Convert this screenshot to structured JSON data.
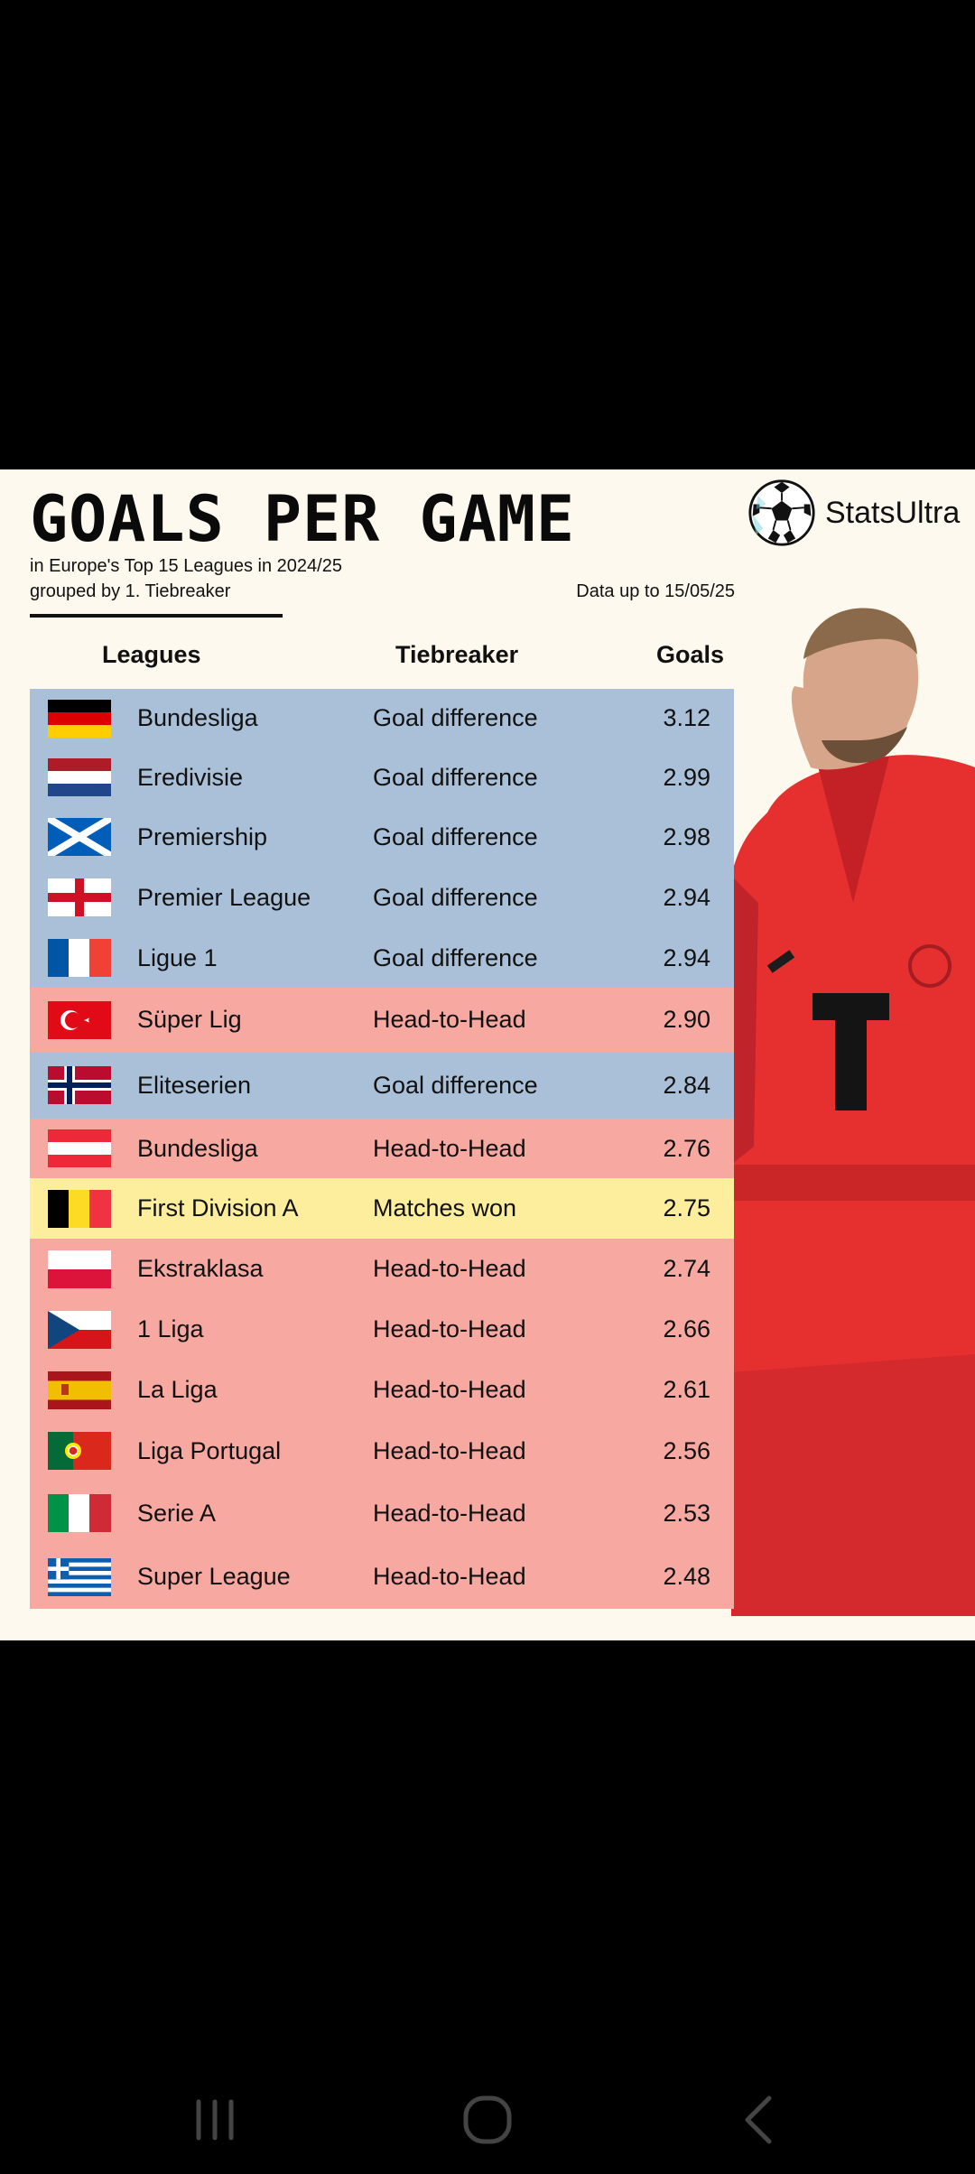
{
  "header": {
    "title": "GOALS PER GAME",
    "subtitle_line1": "in Europe's Top 15 Leagues in 2024/25",
    "subtitle_line2": "grouped by 1. Tiebreaker",
    "data_note": "Data up to 15/05/25"
  },
  "brand": {
    "name": "StatsUltra",
    "logo_icon": "soccer-ball-icon"
  },
  "player_image": "football-player-in-red-kit",
  "table": {
    "columns": {
      "leagues": "Leagues",
      "tiebreaker": "Tiebreaker",
      "goals": "Goals"
    },
    "colors": {
      "Goal difference": "#a9c0d8",
      "Head-to-Head": "#f6a8a1",
      "Matches won": "#fcee9c"
    },
    "rows": [
      {
        "flag": "germany-flag",
        "league": "Bundesliga",
        "tiebreaker": "Goal difference",
        "goals": "3.12"
      },
      {
        "flag": "netherlands-flag",
        "league": "Eredivisie",
        "tiebreaker": "Goal difference",
        "goals": "2.99"
      },
      {
        "flag": "scotland-flag",
        "league": "Premiership",
        "tiebreaker": "Goal difference",
        "goals": "2.98"
      },
      {
        "flag": "england-flag",
        "league": "Premier League",
        "tiebreaker": "Goal difference",
        "goals": "2.94"
      },
      {
        "flag": "france-flag",
        "league": "Ligue 1",
        "tiebreaker": "Goal difference",
        "goals": "2.94"
      },
      {
        "flag": "turkey-flag",
        "league": "Süper Lig",
        "tiebreaker": "Head-to-Head",
        "goals": "2.90"
      },
      {
        "flag": "norway-flag",
        "league": "Eliteserien",
        "tiebreaker": "Goal difference",
        "goals": "2.84"
      },
      {
        "flag": "austria-flag",
        "league": "Bundesliga",
        "tiebreaker": "Head-to-Head",
        "goals": "2.76"
      },
      {
        "flag": "belgium-flag",
        "league": "First Division A",
        "tiebreaker": "Matches won",
        "goals": "2.75"
      },
      {
        "flag": "poland-flag",
        "league": "Ekstraklasa",
        "tiebreaker": "Head-to-Head",
        "goals": "2.74"
      },
      {
        "flag": "czechia-flag",
        "league": "1 Liga",
        "tiebreaker": "Head-to-Head",
        "goals": "2.66"
      },
      {
        "flag": "spain-flag",
        "league": "La Liga",
        "tiebreaker": "Head-to-Head",
        "goals": "2.61"
      },
      {
        "flag": "portugal-flag",
        "league": "Liga Portugal",
        "tiebreaker": "Head-to-Head",
        "goals": "2.56"
      },
      {
        "flag": "italy-flag",
        "league": "Serie A",
        "tiebreaker": "Head-to-Head",
        "goals": "2.53"
      },
      {
        "flag": "greece-flag",
        "league": "Super League",
        "tiebreaker": "Head-to-Head",
        "goals": "2.48"
      }
    ]
  },
  "navbar": {
    "recents_icon": "recents-icon",
    "home_icon": "home-icon",
    "back_icon": "back-icon"
  }
}
